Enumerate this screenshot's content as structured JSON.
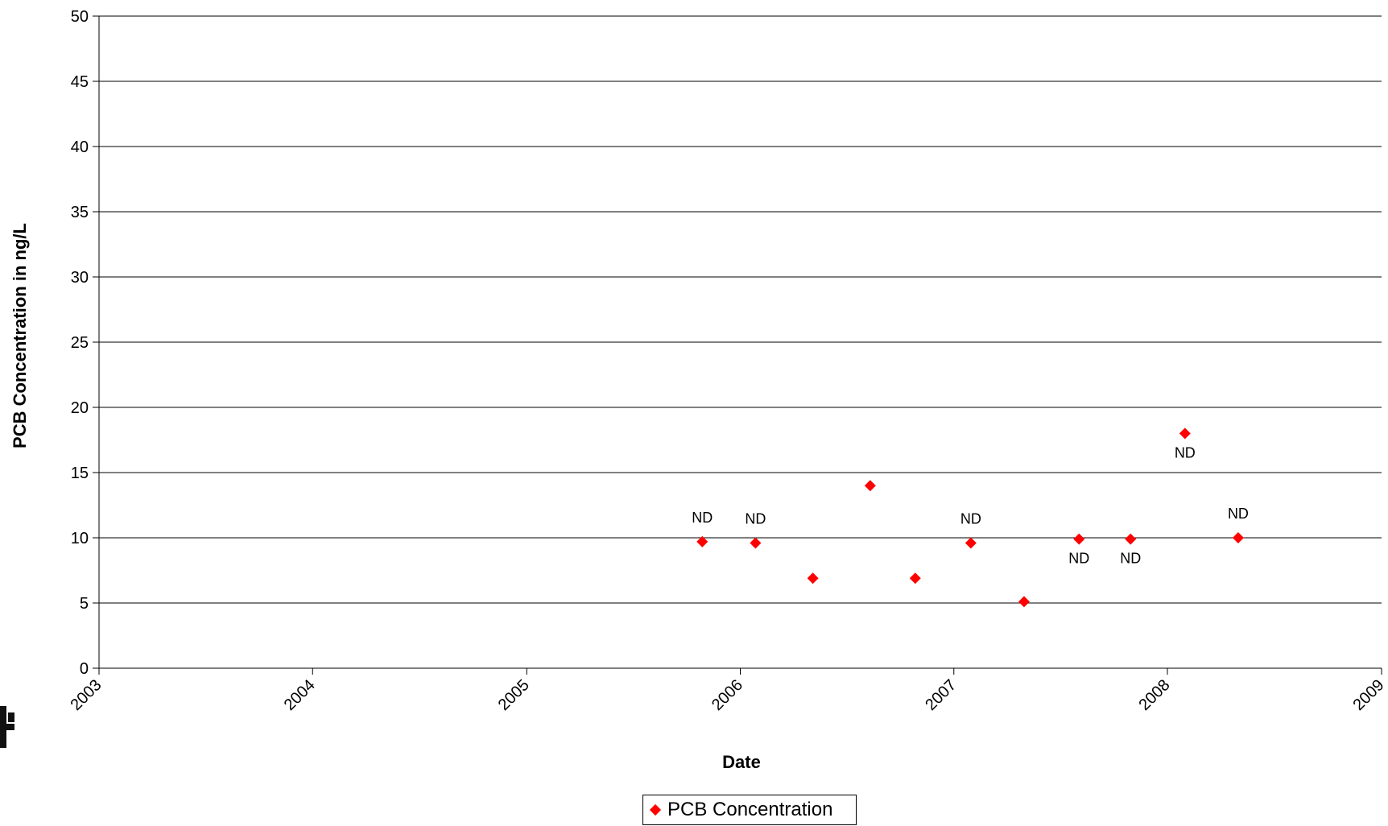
{
  "chart_data": {
    "type": "scatter",
    "title": "",
    "xlabel": "Date",
    "ylabel": "PCB Concentration in ng/L",
    "x_tick_labels": [
      "2003",
      "2004",
      "2005",
      "2006",
      "2007",
      "2008",
      "2009"
    ],
    "y_tick_labels": [
      "0",
      "5",
      "10",
      "15",
      "20",
      "25",
      "30",
      "35",
      "40",
      "45",
      "50"
    ],
    "xlim": [
      "2003-01-01",
      "2009-01-01"
    ],
    "ylim": [
      0,
      50
    ],
    "grid": "horizontal",
    "legend_position": "bottom",
    "series": [
      {
        "name": "PCB Concentration",
        "color": "#ff0000",
        "marker": "diamond",
        "points": [
          {
            "x": "2005-10-28",
            "y": 9.7,
            "label": "ND",
            "label_pos": "above"
          },
          {
            "x": "2006-01-27",
            "y": 9.6,
            "label": "ND",
            "label_pos": "above"
          },
          {
            "x": "2006-05-05",
            "y": 6.9,
            "label": "",
            "label_pos": ""
          },
          {
            "x": "2006-08-11",
            "y": 14.0,
            "label": "",
            "label_pos": ""
          },
          {
            "x": "2006-10-27",
            "y": 6.9,
            "label": "",
            "label_pos": ""
          },
          {
            "x": "2007-01-30",
            "y": 9.6,
            "label": "ND",
            "label_pos": "above"
          },
          {
            "x": "2007-05-01",
            "y": 5.1,
            "label": "",
            "label_pos": ""
          },
          {
            "x": "2007-08-03",
            "y": 9.9,
            "label": "ND",
            "label_pos": "below"
          },
          {
            "x": "2007-10-30",
            "y": 9.9,
            "label": "ND",
            "label_pos": "below"
          },
          {
            "x": "2008-01-31",
            "y": 18.0,
            "label": "ND",
            "label_pos": "below"
          },
          {
            "x": "2008-05-01",
            "y": 10.0,
            "label": "ND",
            "label_pos": "above"
          }
        ]
      }
    ]
  }
}
